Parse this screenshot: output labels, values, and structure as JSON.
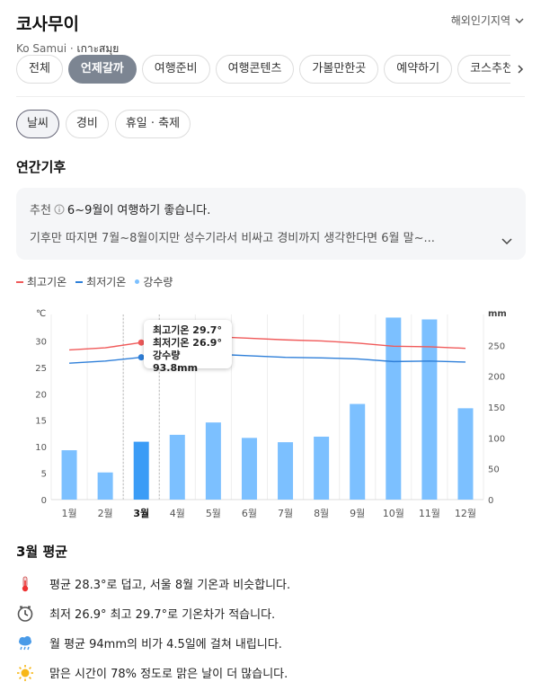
{
  "header": {
    "title": "코사무이",
    "subtitle_en": "Ko Samui",
    "subtitle_sep": " · ",
    "subtitle_local": "เกาะสมุย",
    "region_link": "해외인기지역"
  },
  "tabs": [
    {
      "label": "전체",
      "active": false
    },
    {
      "label": "언제갈까",
      "active": true
    },
    {
      "label": "여행준비",
      "active": false
    },
    {
      "label": "여행콘텐츠",
      "active": false
    },
    {
      "label": "가볼만한곳",
      "active": false
    },
    {
      "label": "예약하기",
      "active": false
    },
    {
      "label": "코스추천",
      "active": false
    }
  ],
  "subtabs": [
    {
      "label": "날씨",
      "active": true
    },
    {
      "label": "경비",
      "active": false
    },
    {
      "label": "휴일 · 축제",
      "active": false
    }
  ],
  "section_title": "연간기후",
  "recommendation": {
    "label": "추천",
    "text": "6~9월이 여행하기 좋습니다.",
    "detail": "기후만 따지면 7월~8월이지만 성수기라서 비싸고 경비까지 생각한다면 6월 말~..."
  },
  "legend": {
    "max_temp": "최고기온",
    "min_temp": "최저기온",
    "rain": "강수량"
  },
  "chart_data": {
    "type": "bar",
    "categories": [
      "1월",
      "2월",
      "3월",
      "4월",
      "5월",
      "6월",
      "7월",
      "8월",
      "9월",
      "10월",
      "11월",
      "12월"
    ],
    "series": [
      {
        "name": "최고기온",
        "type": "line",
        "axis": "left",
        "color": "#f05a5a",
        "values": [
          28.3,
          28.7,
          29.7,
          31.0,
          30.8,
          30.5,
          30.2,
          30.0,
          29.6,
          29.0,
          28.9,
          28.6
        ]
      },
      {
        "name": "최저기온",
        "type": "line",
        "axis": "left",
        "color": "#2e7fd9",
        "values": [
          25.8,
          26.2,
          26.9,
          27.6,
          27.5,
          27.2,
          26.9,
          26.8,
          26.6,
          26.1,
          26.2,
          26.0
        ]
      },
      {
        "name": "강수량",
        "type": "bar",
        "axis": "right",
        "color": "#7cc0ff",
        "highlight_color": "#3b9cf6",
        "values": [
          80,
          44,
          93.8,
          105,
          125,
          100,
          93,
          102,
          155,
          295,
          292,
          148
        ]
      }
    ],
    "y_left": {
      "label": "℃",
      "ticks": [
        0,
        5,
        10,
        15,
        20,
        25,
        30
      ],
      "range": [
        0,
        35
      ]
    },
    "y_right": {
      "label": "mm",
      "ticks": [
        0,
        50,
        100,
        150,
        200,
        250
      ],
      "range": [
        0,
        300
      ]
    },
    "selected_index": 2,
    "tooltip": {
      "max": "최고기온 29.7°",
      "min": "최저기온 26.9°",
      "rain": "강수량 93.8mm"
    }
  },
  "average": {
    "title": "3월 평균",
    "facts": [
      {
        "icon": "thermometer-icon",
        "text": "평균 28.3°로 덥고, 서울 8월 기온과 비슷합니다."
      },
      {
        "icon": "clock-icon",
        "text": "최저 26.9° 최고 29.7°로 기온차가 적습니다."
      },
      {
        "icon": "rain-cloud-icon",
        "text": "월 평균 94mm의 비가 4.5일에 걸쳐 내립니다."
      },
      {
        "icon": "sun-icon",
        "text": "맑은 시간이 78% 정도로 맑은 날이 더 많습니다."
      }
    ]
  }
}
